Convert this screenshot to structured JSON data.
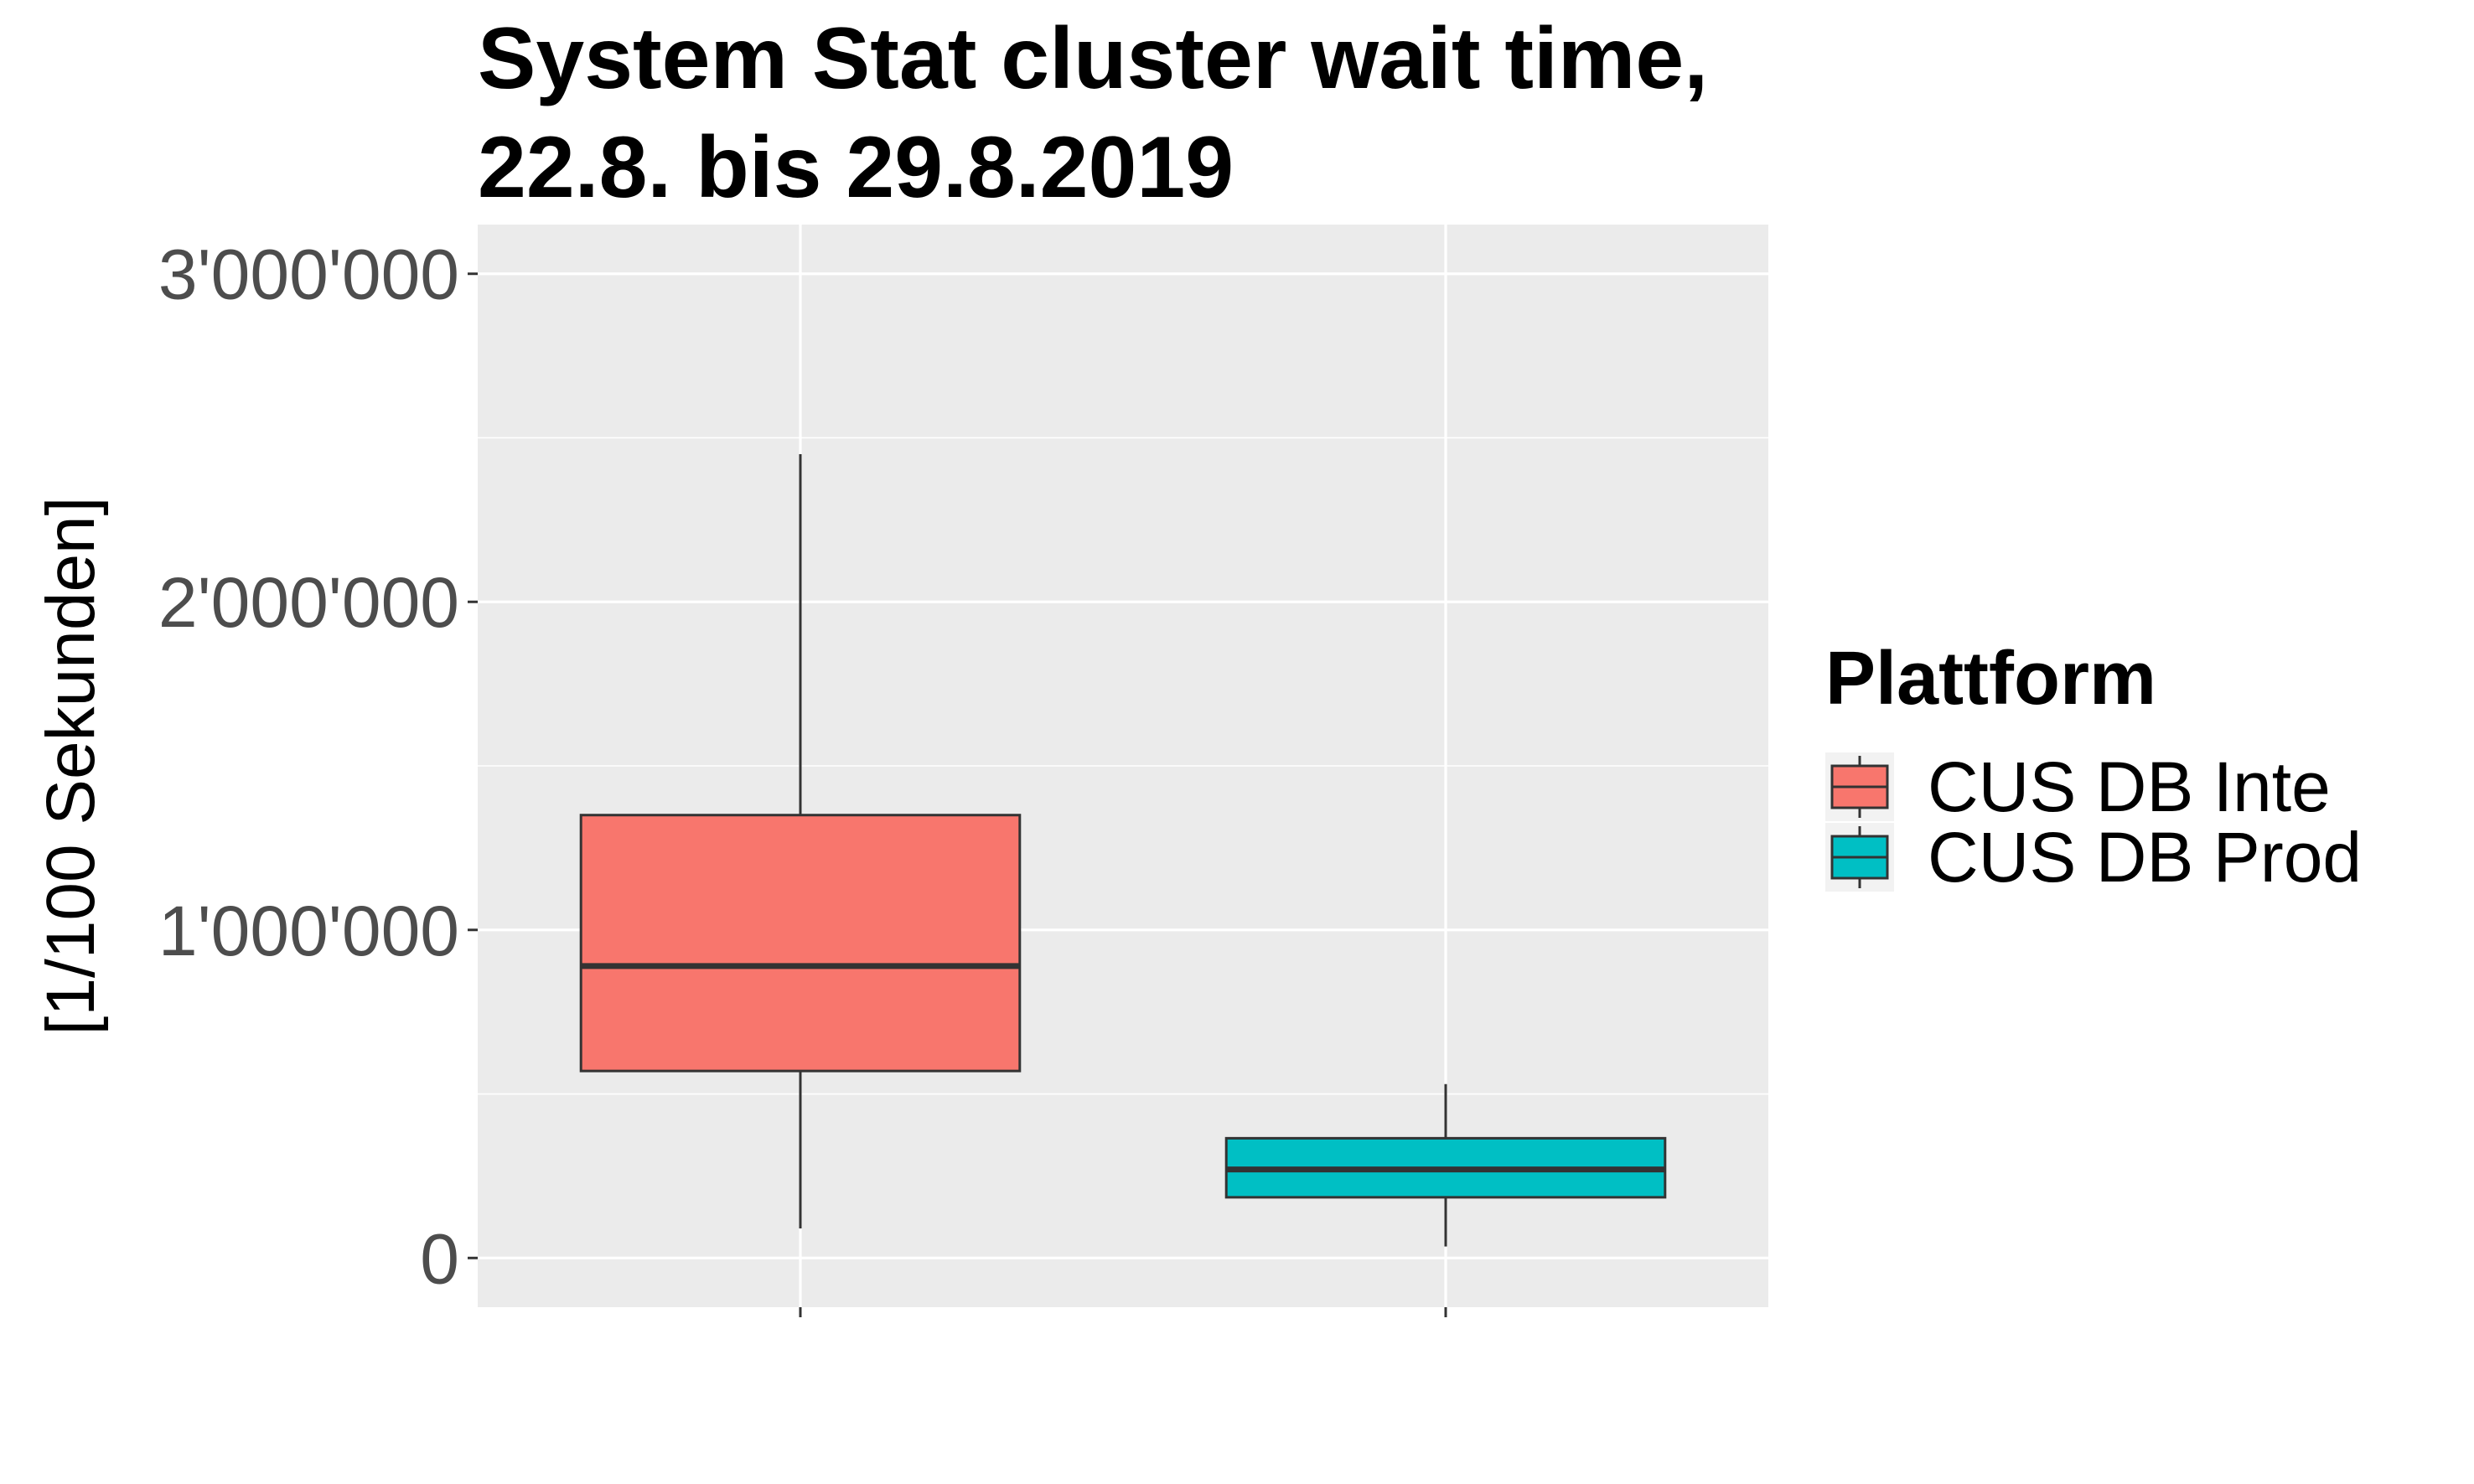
{
  "chart_data": {
    "type": "box",
    "title": "System Stat cluster wait time,",
    "subtitle": "22.8. bis 29.8.2019",
    "xlabel": "",
    "ylabel": "[1/100 Sekunden]",
    "ylim": [
      -150000,
      3150000
    ],
    "yticks": [
      {
        "value": 0,
        "label": "0"
      },
      {
        "value": 1000000,
        "label": "1'000'000"
      },
      {
        "value": 2000000,
        "label": "2'000'000"
      },
      {
        "value": 3000000,
        "label": "3'000'000"
      }
    ],
    "grid": true,
    "legend": {
      "title": "Plattform",
      "position": "right"
    },
    "series": [
      {
        "name": "CUS DB Inte",
        "color": "#F8766D",
        "whisker_low": 90000,
        "q1": 570000,
        "median": 890000,
        "q3": 1350000,
        "whisker_high": 2450000
      },
      {
        "name": "CUS DB Prod",
        "color": "#00BFC4",
        "whisker_low": 35000,
        "q1": 185000,
        "median": 270000,
        "q3": 365000,
        "whisker_high": 530000
      }
    ]
  }
}
